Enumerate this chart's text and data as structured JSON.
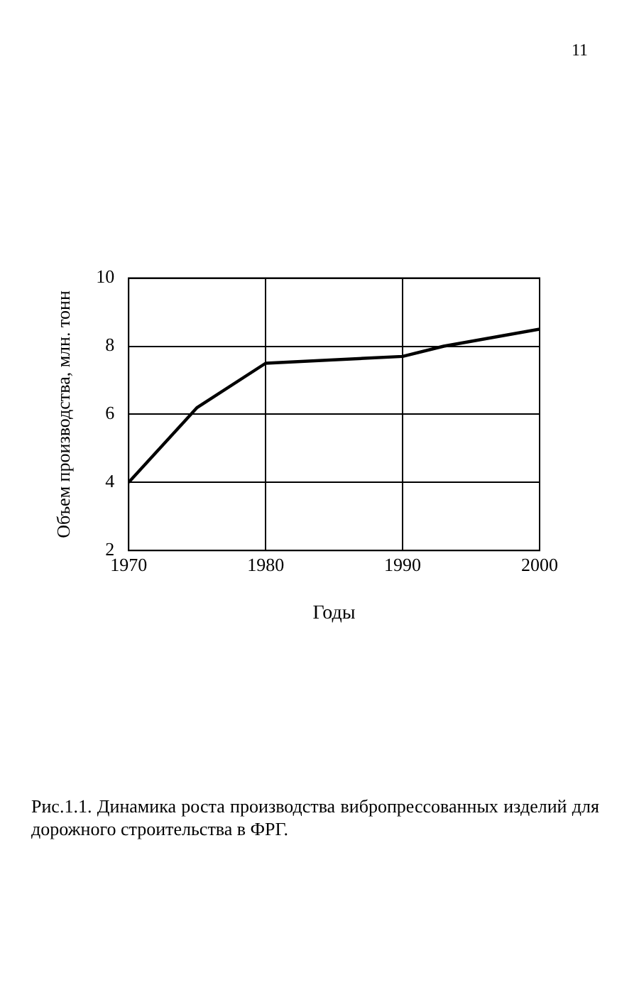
{
  "chart_data": {
    "type": "line",
    "xlabel": "Годы",
    "ylabel": "Объем производства, млн. тонн",
    "x": [
      1970,
      1975,
      1980,
      1990,
      1993,
      2000
    ],
    "series": [
      {
        "color": "#000000",
        "values": [
          4.0,
          6.2,
          7.5,
          7.7,
          8.0,
          8.5
        ]
      }
    ],
    "xlim": [
      1970,
      2000
    ],
    "xticks": [
      1970,
      1980,
      1990,
      2000
    ],
    "ylim": [
      2,
      10
    ],
    "yticks": [
      2,
      4,
      6,
      8,
      10
    ],
    "grid": true,
    "legend": false,
    "marker": "none",
    "line_style": "solid",
    "annotations": [
      "11",
      "Рис.1.1.   Динамика роста производства вибропрессованных изделий для дорожного строительства в ФРГ."
    ]
  }
}
